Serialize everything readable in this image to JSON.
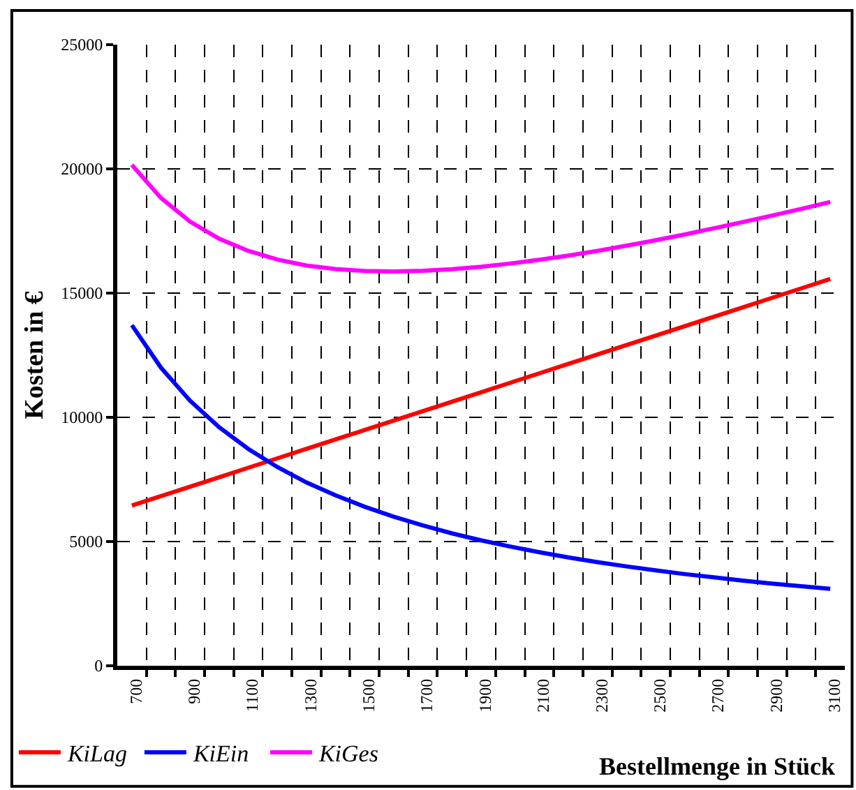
{
  "chart_data": {
    "type": "line",
    "xlabel": "Bestellmenge in Stück",
    "ylabel": "Kosten in €",
    "x": [
      700,
      800,
      900,
      1000,
      1100,
      1200,
      1300,
      1400,
      1500,
      1600,
      1700,
      1800,
      1900,
      2000,
      2100,
      2200,
      2300,
      2400,
      2500,
      2600,
      2700,
      2800,
      2900,
      3000,
      3100
    ],
    "series": [
      {
        "name": "KiLag",
        "color": "#ff0000",
        "values": [
          6450,
          6830,
          7210,
          7590,
          7970,
          8350,
          8730,
          9110,
          9490,
          9870,
          10250,
          10630,
          11010,
          11390,
          11770,
          12150,
          12530,
          12910,
          13290,
          13670,
          14050,
          14430,
          14810,
          15190,
          15570
        ]
      },
      {
        "name": "KiEin",
        "color": "#0000ff",
        "values": [
          13710,
          12000,
          10670,
          9600,
          8730,
          8000,
          7380,
          6860,
          6400,
          6000,
          5650,
          5330,
          5050,
          4800,
          4570,
          4360,
          4170,
          4000,
          3840,
          3690,
          3560,
          3430,
          3310,
          3200,
          3100
        ]
      },
      {
        "name": "KiGes",
        "color": "#ff00ff",
        "values": [
          20160,
          18830,
          17880,
          17190,
          16700,
          16350,
          16110,
          15970,
          15890,
          15870,
          15900,
          15960,
          16060,
          16190,
          16340,
          16510,
          16700,
          16910,
          17130,
          17360,
          17610,
          17860,
          18120,
          18390,
          18670
        ]
      }
    ],
    "xlim": [
      650,
      3150
    ],
    "xticks": [
      700,
      {
        "value": 750,
        "label": null
      },
      {
        "value": 850,
        "label": null
      },
      900,
      {
        "value": 950,
        "label": null
      },
      {
        "value": 1050,
        "label": null
      },
      1100,
      {
        "value": 1150,
        "label": null
      },
      {
        "value": 1250,
        "label": null
      },
      1300,
      {
        "value": 1350,
        "label": null
      },
      {
        "value": 1450,
        "label": null
      },
      1500,
      {
        "value": 1550,
        "label": null
      },
      {
        "value": 1650,
        "label": null
      },
      1700,
      {
        "value": 1750,
        "label": null
      },
      {
        "value": 1850,
        "label": null
      },
      1900,
      {
        "value": 1950,
        "label": null
      },
      {
        "value": 2050,
        "label": null
      },
      2100,
      {
        "value": 2150,
        "label": null
      },
      {
        "value": 2250,
        "label": null
      },
      2300,
      {
        "value": 2350,
        "label": null
      },
      {
        "value": 2450,
        "label": null
      },
      2500,
      {
        "value": 2550,
        "label": null
      },
      {
        "value": 2650,
        "label": null
      },
      2700,
      {
        "value": 2750,
        "label": null
      },
      {
        "value": 2850,
        "label": null
      },
      2900,
      {
        "value": 2950,
        "label": null
      },
      {
        "value": 3050,
        "label": null
      },
      3100
    ],
    "ylim": [
      0,
      25000
    ],
    "yticks": [
      0,
      5000,
      10000,
      15000,
      20000,
      25000
    ],
    "grid": true,
    "legend": "bottom left",
    "marker": "none",
    "line_style": "solid"
  }
}
